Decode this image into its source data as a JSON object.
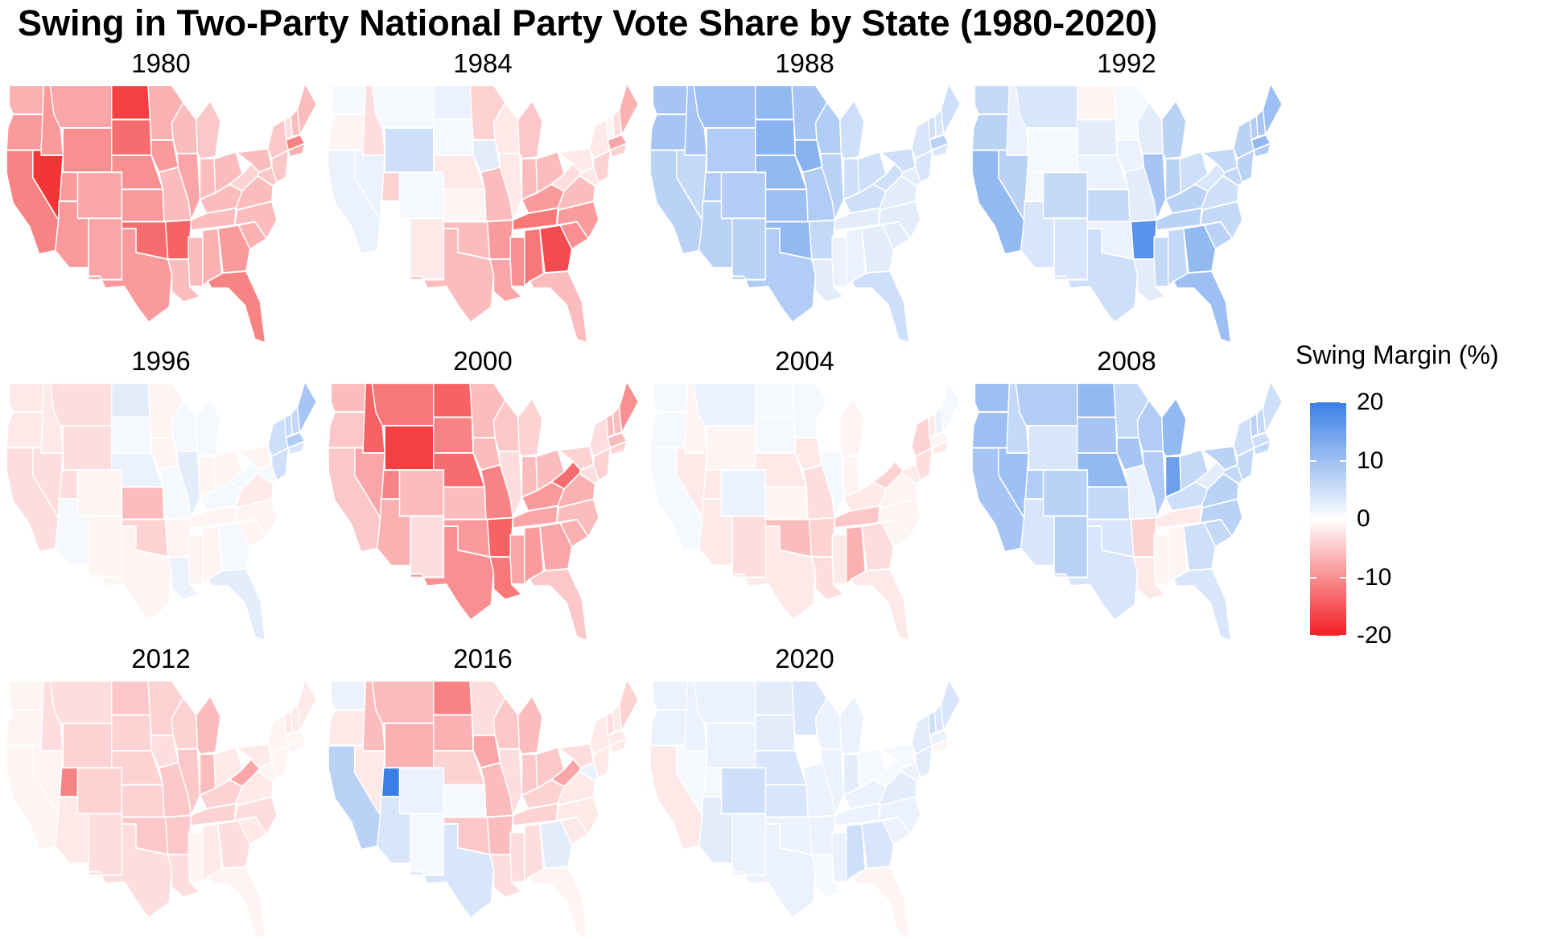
{
  "title": "Swing in Two-Party National Party Vote Share by State (1980-2020)",
  "colors": {
    "positive": "#3b7fe6",
    "zero": "#ffffff",
    "negative": "#f31e22",
    "border": "#ffffff"
  },
  "chart_data": {
    "type": "heatmap",
    "title": "Swing in Two-Party National Party Vote Share by State (1980-2020)",
    "legend": {
      "title": "Swing Margin (%)",
      "ticks": [
        "20",
        "10",
        "0",
        "-10",
        "-20"
      ],
      "range": [
        -20,
        20
      ],
      "placement": "right"
    },
    "regions": [
      "WA",
      "OR",
      "CA",
      "ID",
      "NV",
      "MT",
      "WY",
      "UT",
      "AZ",
      "CO",
      "NM",
      "ND",
      "SD",
      "NE",
      "KS",
      "OK",
      "TX",
      "MN",
      "IA",
      "MO",
      "AR",
      "LA",
      "WI",
      "IL",
      "MS",
      "MI",
      "IN",
      "KY",
      "TN",
      "AL",
      "OH",
      "GA",
      "FL",
      "SC",
      "NC",
      "VA",
      "WV",
      "PA",
      "MD",
      "NY",
      "NJ",
      "VT",
      "NH",
      "ME",
      "MA",
      "CT"
    ],
    "panels": [
      {
        "year": "1980",
        "values": [
          -7,
          -9,
          -11,
          -9,
          -18,
          -8,
          -10,
          -9,
          -9,
          -8,
          -8,
          -17,
          -13,
          -10,
          -9,
          -13,
          -9,
          -7,
          -9,
          -6,
          -14,
          -6,
          -6,
          -8,
          -6,
          -5,
          -6,
          -6,
          -6,
          -7,
          -6,
          -9,
          -11,
          -7,
          -6,
          -6,
          -4,
          -6,
          -5,
          -5,
          -5,
          -3,
          -6,
          -6,
          -11,
          -7
        ]
      },
      {
        "year": "1984",
        "values": [
          1,
          -1,
          2,
          -3,
          2,
          1,
          5,
          -4,
          0,
          1,
          -2,
          2,
          1,
          -2,
          -1,
          -6,
          -6,
          -4,
          3,
          -6,
          -9,
          -8,
          -2,
          -2,
          -10,
          -5,
          -6,
          -9,
          -12,
          -12,
          -6,
          -16,
          -6,
          -10,
          -9,
          -6,
          -3,
          -2,
          -2,
          -2,
          -4,
          -1,
          -3,
          -7,
          -8,
          -4
        ]
      },
      {
        "year": "1988",
        "values": [
          9,
          9,
          7,
          9,
          6,
          10,
          8,
          8,
          7,
          8,
          7,
          11,
          12,
          11,
          10,
          11,
          8,
          9,
          12,
          8,
          6,
          3,
          8,
          7,
          2,
          5,
          5,
          5,
          3,
          2,
          5,
          3,
          5,
          3,
          3,
          3,
          5,
          5,
          3,
          4,
          4,
          5,
          4,
          5,
          7,
          4
        ]
      },
      {
        "year": "1992",
        "values": [
          6,
          7,
          11,
          2,
          7,
          4,
          1,
          1,
          4,
          6,
          4,
          -1,
          3,
          2,
          6,
          2,
          5,
          1,
          2,
          3,
          17,
          3,
          3,
          9,
          6,
          7,
          7,
          7,
          7,
          6,
          5,
          11,
          10,
          7,
          6,
          5,
          4,
          6,
          6,
          7,
          7,
          8,
          9,
          10,
          11,
          8
        ]
      },
      {
        "year": "1996",
        "values": [
          -2,
          -2,
          -3,
          -2,
          -3,
          -3,
          -3,
          -3,
          1,
          -1,
          -1,
          3,
          1,
          2,
          -6,
          -4,
          -1,
          -1,
          -1,
          1,
          -1,
          2,
          1,
          3,
          -1,
          1,
          -1,
          1,
          -1,
          -1,
          -1,
          1,
          3,
          -1,
          -1,
          -2,
          1,
          -1,
          1,
          5,
          5,
          6,
          6,
          9,
          8,
          4
        ]
      },
      {
        "year": "2000",
        "values": [
          -6,
          -5,
          -5,
          -14,
          -8,
          -12,
          -17,
          -11,
          -7,
          -6,
          -3,
          -14,
          -11,
          -13,
          -6,
          -9,
          -10,
          -6,
          -6,
          -11,
          -14,
          -12,
          -5,
          -3,
          -8,
          -4,
          -6,
          -9,
          -8,
          -9,
          -6,
          -8,
          -5,
          -7,
          -6,
          -7,
          -13,
          -4,
          -3,
          -3,
          -4,
          -6,
          -6,
          -10,
          -6,
          -4
        ]
      },
      {
        "year": "2004",
        "values": [
          1,
          1,
          1,
          -1,
          -2,
          2,
          -1,
          -2,
          -2,
          2,
          -3,
          1,
          1,
          -2,
          -1,
          -6,
          -2,
          1,
          -2,
          -3,
          -4,
          -3,
          0,
          1,
          -2,
          -1,
          -1,
          -2,
          -5,
          -7,
          0,
          -3,
          -2,
          -1,
          -1,
          -1,
          -4,
          0,
          -2,
          -4,
          -3,
          -2,
          2,
          1,
          -1,
          -2
        ]
      },
      {
        "year": "2008",
        "values": [
          10,
          10,
          9,
          6,
          10,
          8,
          4,
          8,
          4,
          7,
          7,
          11,
          9,
          11,
          6,
          4,
          4,
          6,
          9,
          2,
          -4,
          -2,
          8,
          8,
          -1,
          11,
          15,
          5,
          -2,
          -1,
          6,
          5,
          4,
          6,
          7,
          7,
          3,
          7,
          6,
          5,
          6,
          7,
          6,
          5,
          5,
          6
        ]
      },
      {
        "year": "2012",
        "values": [
          -1,
          -1,
          -1,
          -3,
          -1,
          -3,
          -4,
          -11,
          -2,
          -4,
          -3,
          -5,
          -4,
          -4,
          -4,
          -5,
          -3,
          -4,
          -3,
          -5,
          -5,
          -3,
          -4,
          -5,
          -1,
          -6,
          -6,
          -4,
          -4,
          -2,
          -2,
          -3,
          -1,
          -2,
          -3,
          -2,
          -8,
          -2,
          -1,
          -1,
          -1,
          -2,
          -2,
          -2,
          -1,
          -1
        ]
      },
      {
        "year": "2016",
        "values": [
          2,
          -2,
          7,
          -6,
          -2,
          -6,
          -7,
          22,
          4,
          2,
          1,
          -11,
          -7,
          -4,
          1,
          -5,
          4,
          -3,
          -8,
          -6,
          -6,
          -3,
          -5,
          -3,
          -3,
          -6,
          -5,
          -4,
          -4,
          -3,
          -5,
          3,
          -1,
          -2,
          -2,
          -2,
          -8,
          -3,
          2,
          -2,
          -2,
          -3,
          -2,
          -4,
          -2,
          -2
        ]
      },
      {
        "year": "2020",
        "values": [
          2,
          2,
          -2,
          2,
          1,
          2,
          2,
          1,
          3,
          5,
          2,
          3,
          3,
          4,
          4,
          2,
          2,
          4,
          0,
          2,
          2,
          1,
          2,
          2,
          2,
          2,
          3,
          2,
          2,
          5,
          1,
          4,
          -1,
          2,
          2,
          3,
          1,
          1,
          2,
          3,
          3,
          5,
          4,
          4,
          2,
          -1
        ]
      }
    ]
  }
}
